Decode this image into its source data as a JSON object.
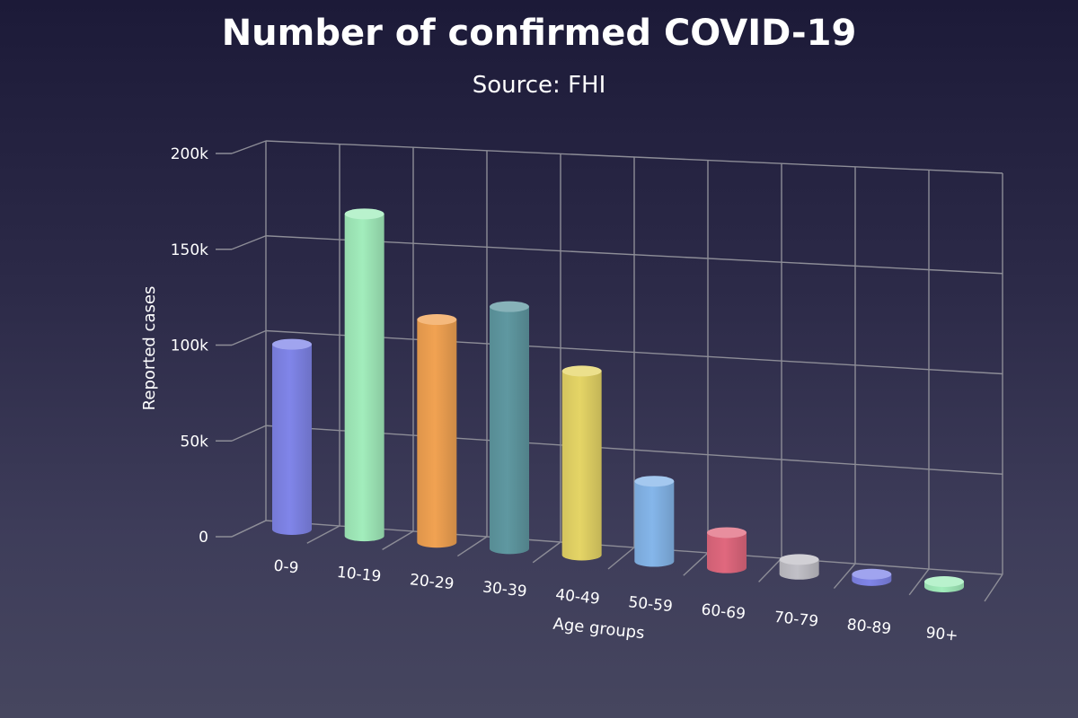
{
  "chart_data": {
    "type": "bar",
    "title": "Number of confirmed COVID-19",
    "subtitle": "Source: FHI",
    "xlabel": "Age groups",
    "ylabel": "Reported cases",
    "categories": [
      "0-9",
      "10-19",
      "20-29",
      "30-39",
      "40-49",
      "50-59",
      "60-69",
      "70-79",
      "80-89",
      "90+"
    ],
    "series": [
      {
        "values": [
          96000,
          168000,
          117000,
          128000,
          98000,
          43000,
          19000,
          8000,
          3500,
          700
        ]
      }
    ],
    "colors": [
      "#8085e9",
      "#a2edbc",
      "#f1a252",
      "#5f98a1",
      "#e5d566",
      "#85b6ea",
      "#e0687e",
      "#c1c0c7",
      "#8085e9",
      "#a2edbc"
    ],
    "ylim": [
      0,
      200000
    ],
    "yticks": [
      0,
      50000,
      100000,
      150000,
      200000
    ],
    "ytick_labels": [
      "0",
      "50k",
      "100k",
      "150k",
      "200k"
    ],
    "grid": true,
    "legend": false,
    "three_d": true
  }
}
